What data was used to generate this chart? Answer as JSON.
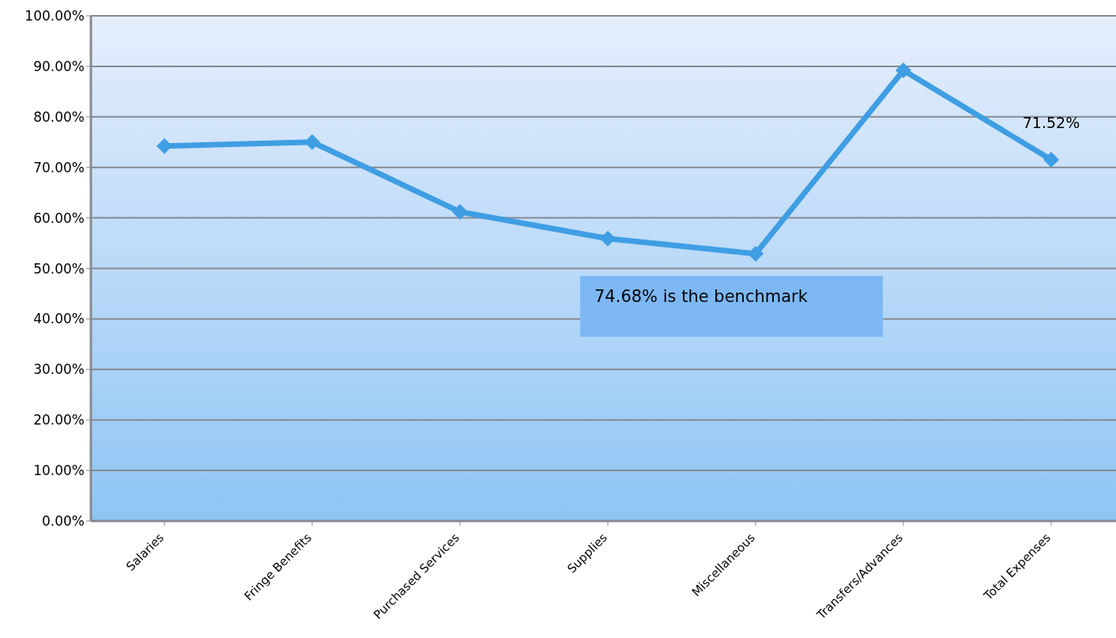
{
  "chart_data": {
    "type": "line",
    "categories": [
      "Salaries",
      "Fringe Benefits",
      "Purchased  Services",
      "Supplies",
      "Miscellaneous",
      "Transfers/Advances",
      "Total Expenses"
    ],
    "series": [
      {
        "color": "#3f9ee3",
        "values": [
          74.2,
          75.0,
          61.2,
          55.9,
          52.9,
          89.2,
          71.52
        ],
        "value_labels": [
          null,
          null,
          null,
          null,
          null,
          null,
          "71.52%"
        ]
      }
    ],
    "ylim": [
      0,
      100
    ],
    "yticks": [
      {
        "value": 0,
        "label": "0.00%"
      },
      {
        "value": 10,
        "label": "10.00%"
      },
      {
        "value": 20,
        "label": "20.00%"
      },
      {
        "value": 30,
        "label": "30.00%"
      },
      {
        "value": 40,
        "label": "40.00%"
      },
      {
        "value": 50,
        "label": "50.00%"
      },
      {
        "value": 60,
        "label": "60.00%"
      },
      {
        "value": 70,
        "label": "70.00%"
      },
      {
        "value": 80,
        "label": "80.00%"
      },
      {
        "value": 90,
        "label": "90.00%"
      },
      {
        "value": 100,
        "label": "100.00%"
      }
    ],
    "grid": "y",
    "marker": "diamond",
    "line_style": "solid",
    "legend": false,
    "annotations": [
      "74.68% is the benchmark"
    ]
  }
}
